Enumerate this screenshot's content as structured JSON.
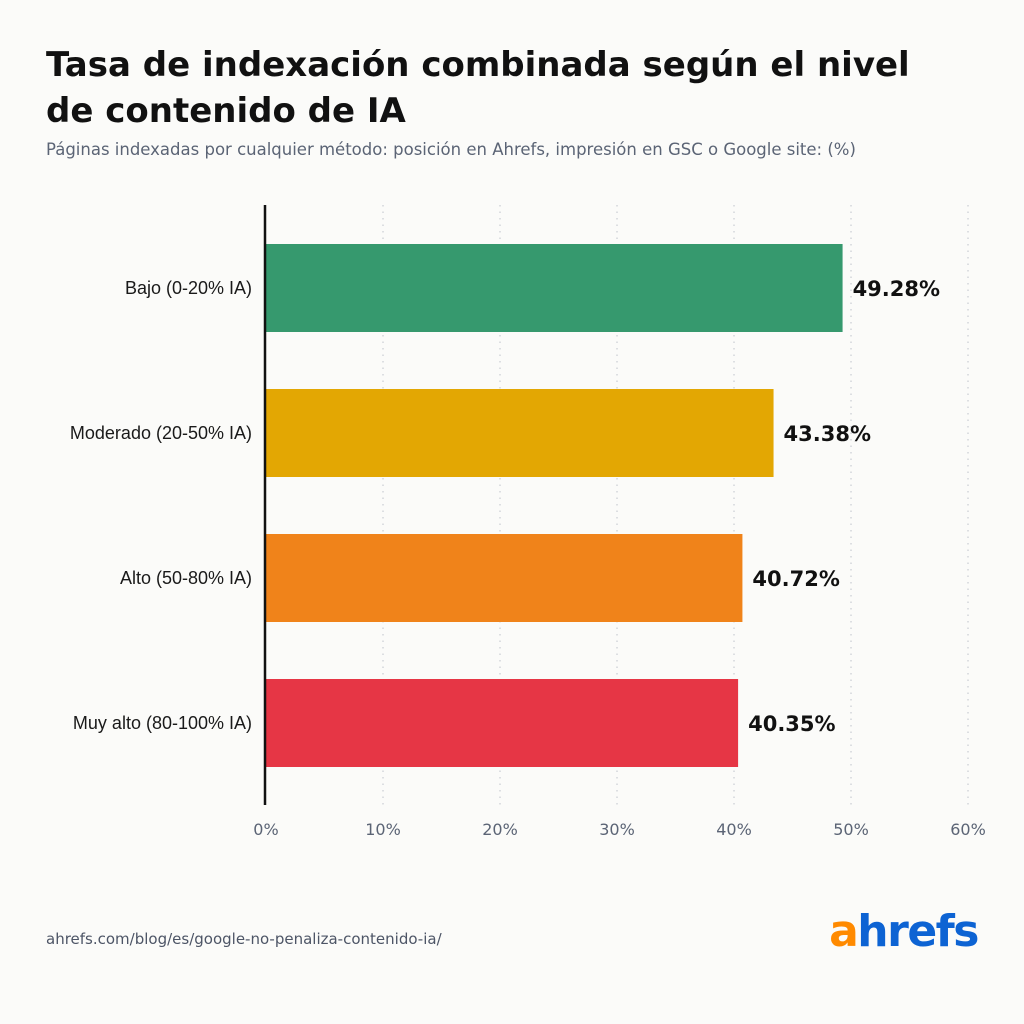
{
  "header": {
    "title": "Tasa de indexación combinada según el nivel de contenido de IA",
    "subtitle": "Páginas indexadas por cualquier método: posición en Ahrefs, impresión en GSC o Google site: (%)"
  },
  "chart_data": {
    "type": "bar",
    "orientation": "horizontal",
    "categories": [
      "Bajo (0-20% IA)",
      "Moderado (20-50% IA)",
      "Alto (50-80% IA)",
      "Muy alto (80-100% IA)"
    ],
    "values": [
      49.28,
      43.38,
      40.72,
      40.35
    ],
    "value_labels": [
      "49.28%",
      "43.38%",
      "40.72%",
      "40.35%"
    ],
    "colors": [
      "#36996e",
      "#e3a703",
      "#f0831a",
      "#e63645"
    ],
    "xlim": [
      0,
      60
    ],
    "x_ticks": [
      0,
      10,
      20,
      30,
      40,
      50,
      60
    ],
    "x_tick_labels": [
      "0%",
      "10%",
      "20%",
      "30%",
      "40%",
      "50%",
      "60%"
    ],
    "grid": "vertical dotted",
    "xlabel": "",
    "ylabel": ""
  },
  "footer": {
    "source": "ahrefs.com/blog/es/google-no-penaliza-contenido-ia/",
    "logo_a": "a",
    "logo_rest": "hrefs"
  }
}
